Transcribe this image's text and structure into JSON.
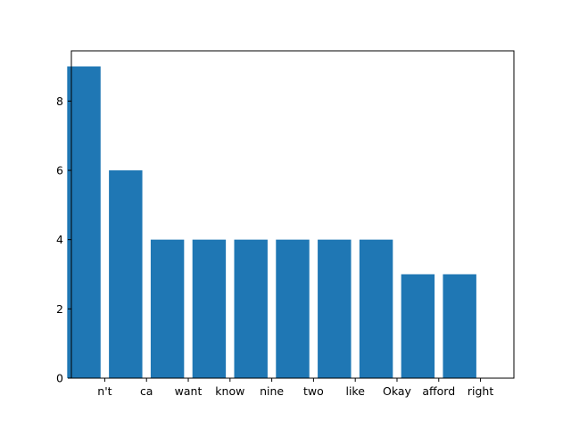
{
  "colors": {
    "bar": "#1f77b4",
    "axis": "#000000",
    "background": "#ffffff"
  },
  "chart_data": {
    "type": "bar",
    "categories": [
      "n't",
      "ca",
      "want",
      "know",
      "nine",
      "two",
      "like",
      "Okay",
      "afford",
      "right"
    ],
    "values": [
      9,
      6,
      4,
      4,
      4,
      4,
      4,
      4,
      3,
      3
    ],
    "title": "",
    "xlabel": "",
    "ylabel": "",
    "ylim": [
      0,
      9.45
    ],
    "yticks": [
      0,
      2,
      4,
      6,
      8
    ],
    "grid": false,
    "legend": "none"
  }
}
